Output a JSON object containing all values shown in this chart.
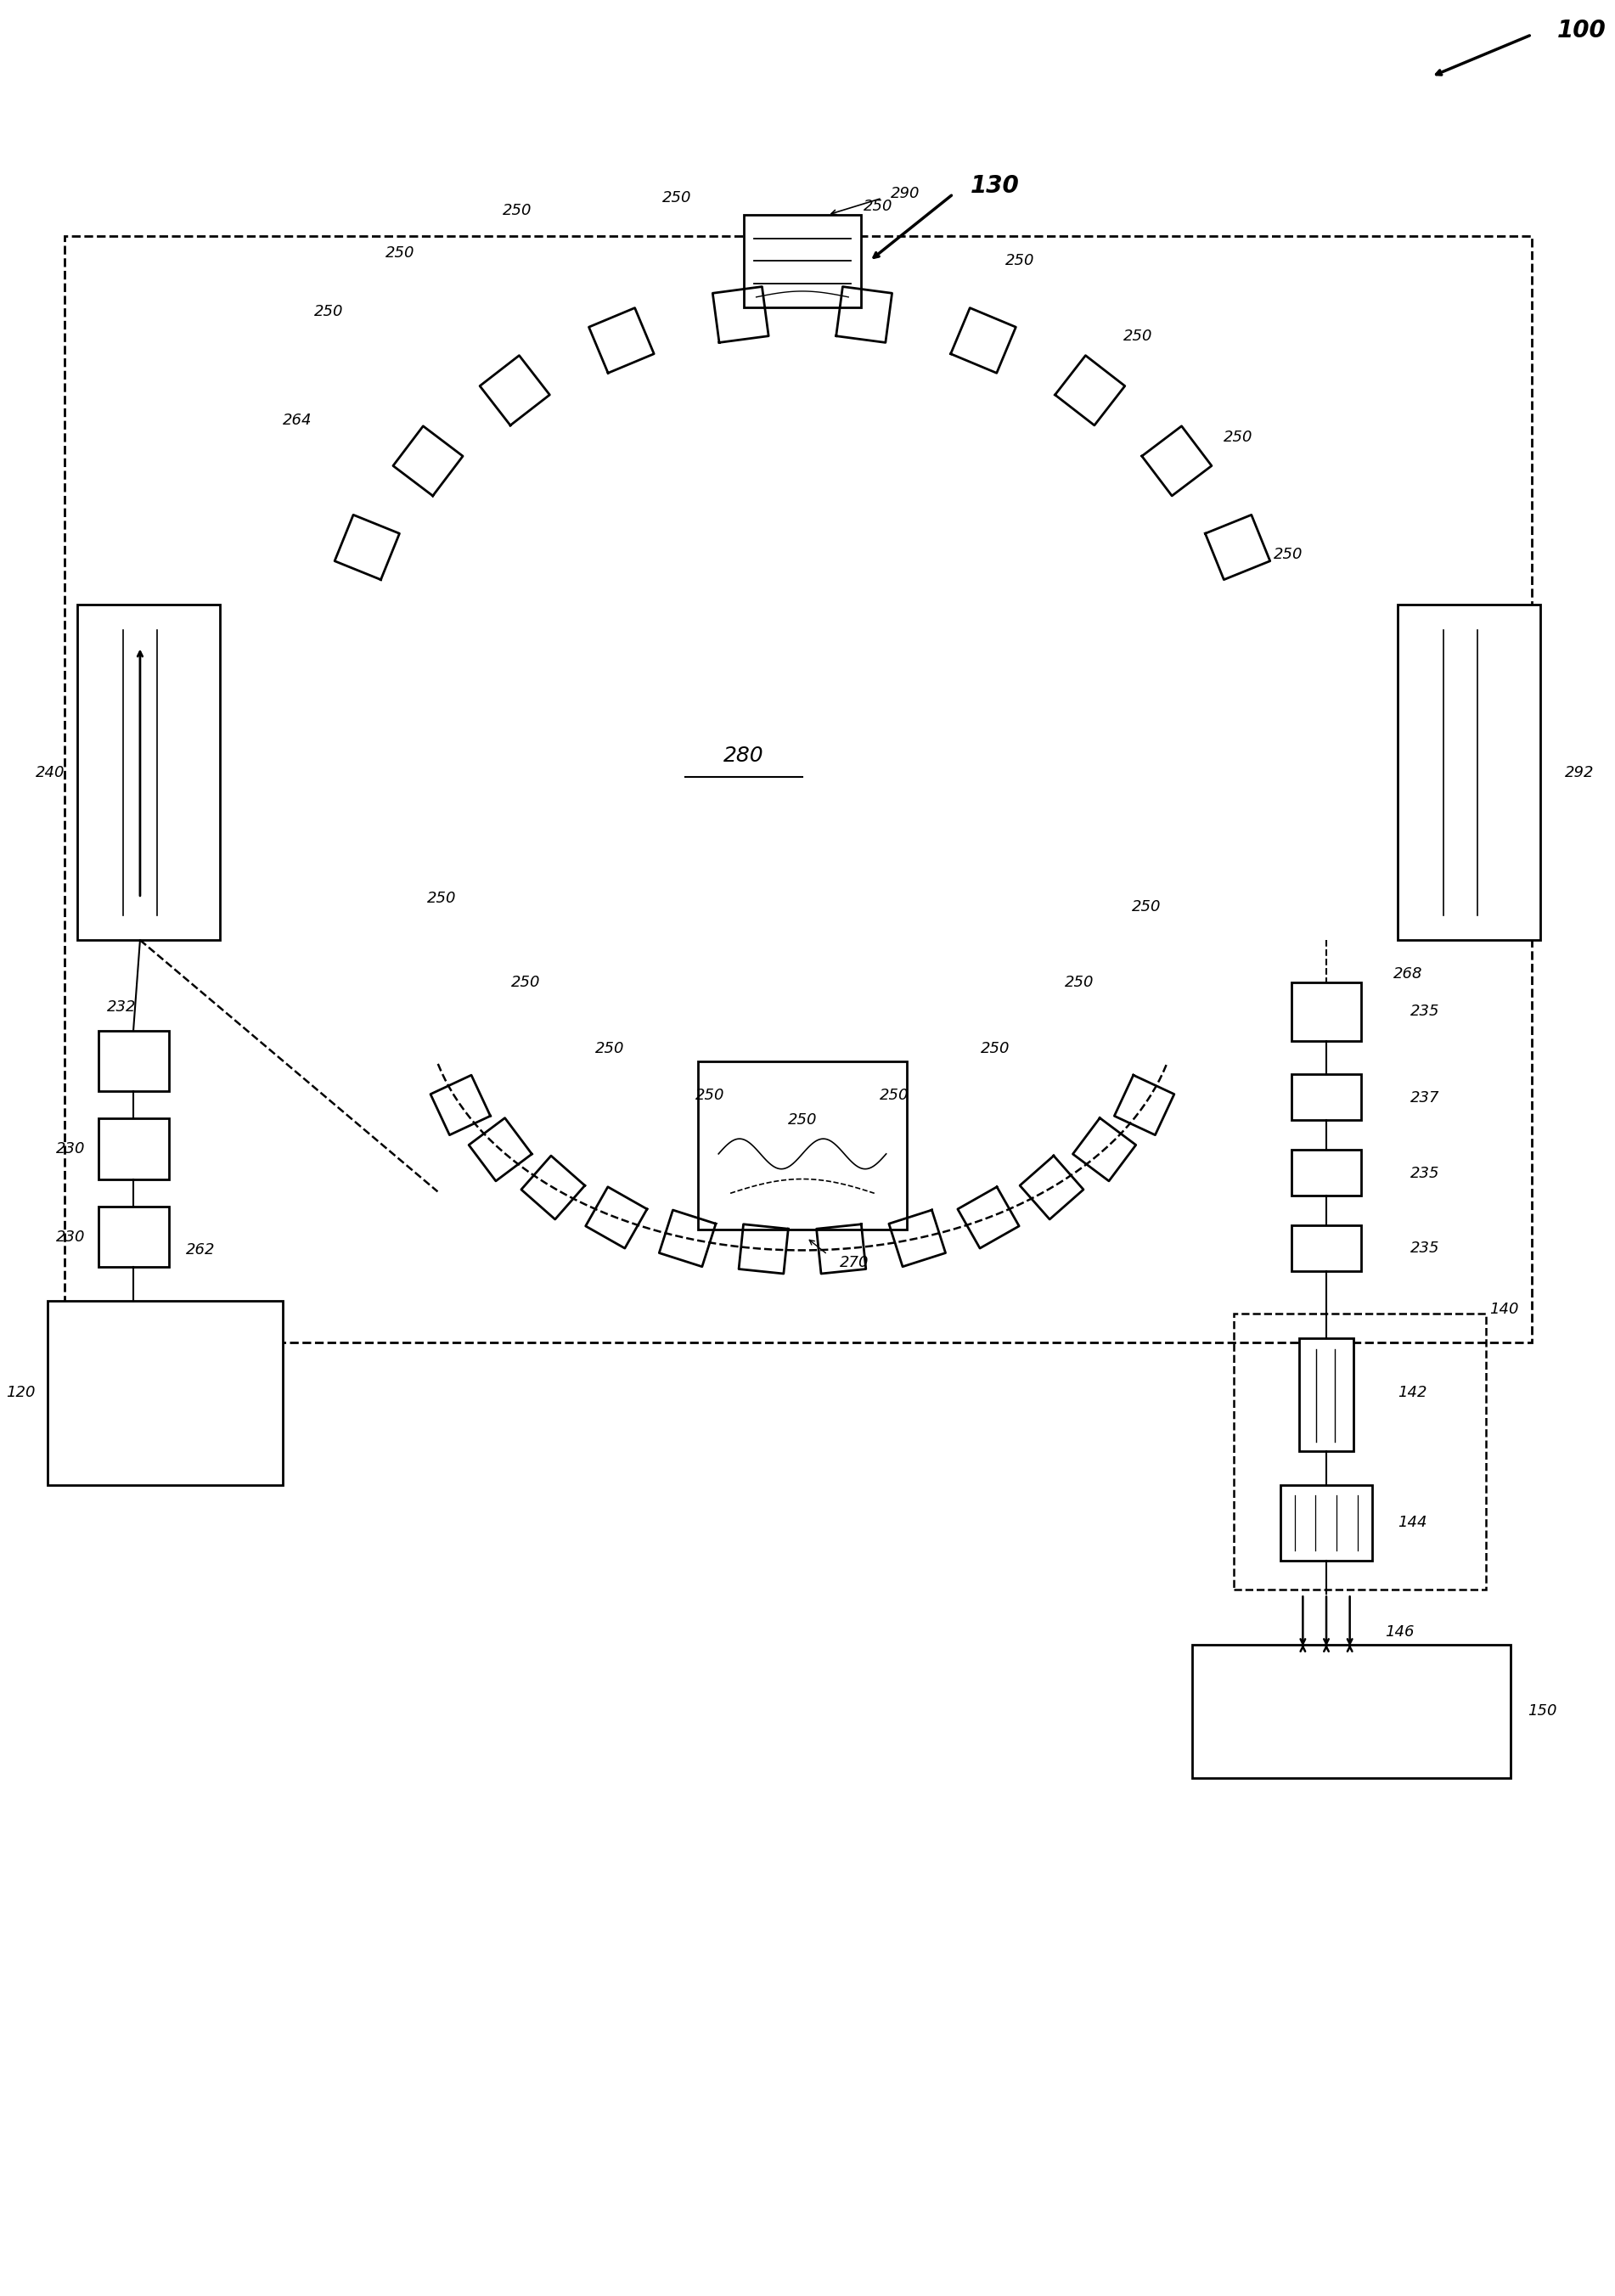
{
  "fig_width": 19.02,
  "fig_height": 27.04,
  "bg_color": "#ffffff",
  "label_100": "100",
  "label_130": "130",
  "label_280": "280",
  "label_240": "240",
  "label_292": "292",
  "label_290": "290",
  "label_270": "270",
  "label_264": "264",
  "label_268": "268",
  "label_235": "235",
  "label_237": "237",
  "label_232": "232",
  "label_230": "230",
  "label_262": "262",
  "label_120": "120",
  "label_140": "140",
  "label_142": "142",
  "label_144": "144",
  "label_146": "146",
  "label_150": "150",
  "label_250": "250"
}
